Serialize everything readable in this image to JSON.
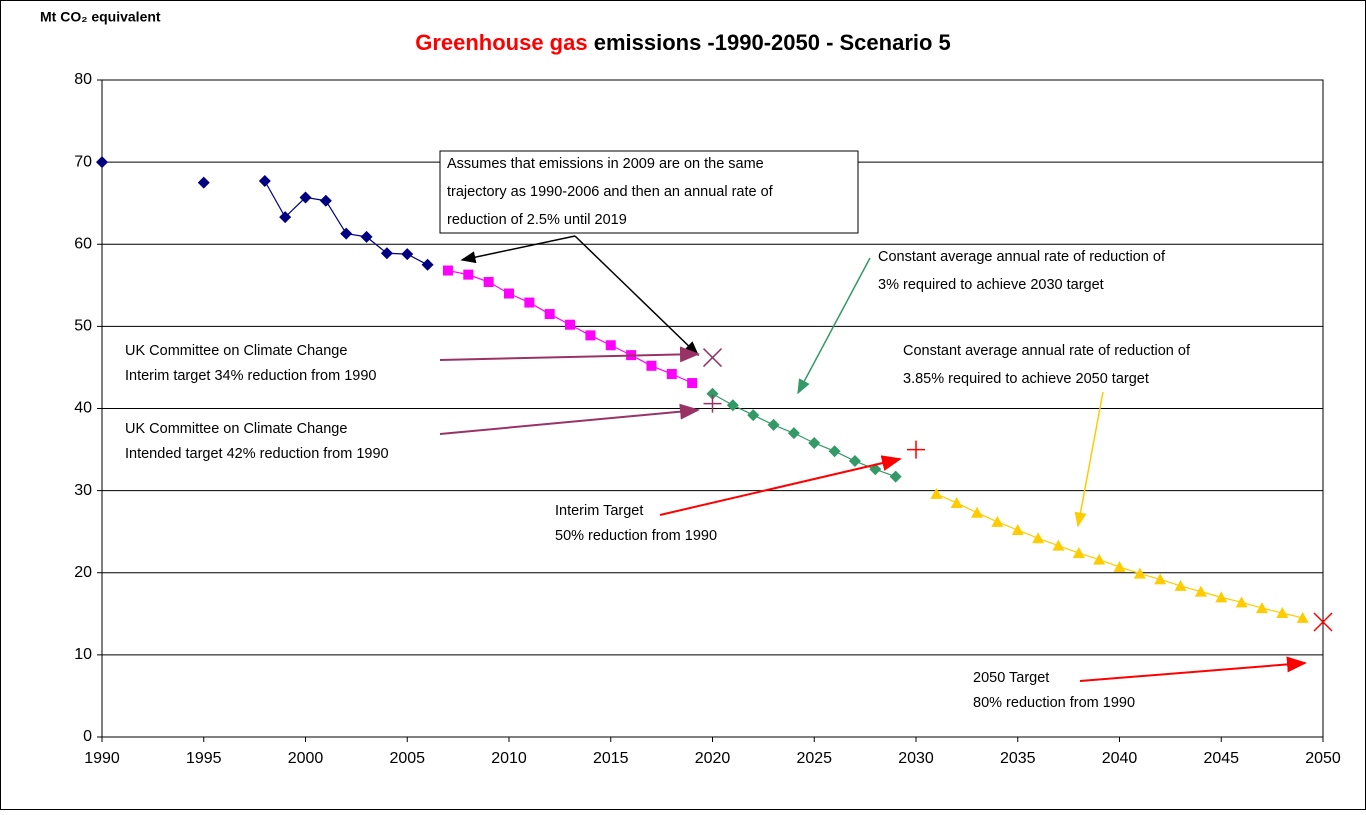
{
  "chart_data": {
    "type": "line",
    "title": {
      "highlight": "Greenhouse gas",
      "rest": " emissions -1990-2050 - Scenario 5"
    },
    "y_label": "Mt CO₂ equivalent",
    "xlim": [
      1990,
      2050
    ],
    "xticks": [
      1990,
      1995,
      2000,
      2005,
      2010,
      2015,
      2020,
      2025,
      2030,
      2035,
      2040,
      2045,
      2050
    ],
    "ylim": [
      0,
      80
    ],
    "yticks": [
      0,
      10,
      20,
      30,
      40,
      50,
      60,
      70,
      80
    ],
    "grid": true,
    "series": [
      {
        "color": "#000080",
        "marker": "diamond",
        "line": true,
        "x": [
          1990,
          1991,
          1992,
          1993,
          1994,
          1995,
          1996,
          1997,
          1998,
          1999,
          2000,
          2001,
          2002,
          2003,
          2004,
          2005,
          2006
        ],
        "values": [
          70,
          null,
          null,
          null,
          null,
          67.5,
          null,
          null,
          67.7,
          63.3,
          65.7,
          65.3,
          61.3,
          60.9,
          58.9,
          58.8,
          57.5
        ]
      },
      {
        "color": "#ff00ff",
        "marker": "square",
        "line": true,
        "x": [
          2007,
          2008,
          2009,
          2010,
          2011,
          2012,
          2013,
          2014,
          2015,
          2016,
          2017,
          2018,
          2019
        ],
        "values": [
          56.8,
          56.3,
          55.4,
          54.0,
          52.9,
          51.5,
          50.2,
          48.9,
          47.7,
          46.5,
          45.2,
          44.2,
          43.1
        ]
      },
      {
        "color": "#339966",
        "marker": "diamond",
        "line": true,
        "x": [
          2020,
          2021,
          2022,
          2023,
          2024,
          2025,
          2026,
          2027,
          2028,
          2029
        ],
        "values": [
          41.8,
          40.4,
          39.2,
          38.0,
          37.0,
          35.8,
          34.8,
          33.6,
          32.6,
          31.7
        ]
      },
      {
        "color": "#ffcc00",
        "marker": "triangle",
        "line": true,
        "x": [
          2031,
          2032,
          2033,
          2034,
          2035,
          2036,
          2037,
          2038,
          2039,
          2040,
          2041,
          2042,
          2043,
          2044,
          2045,
          2046,
          2047,
          2048,
          2049
        ],
        "values": [
          29.6,
          28.5,
          27.3,
          26.2,
          25.2,
          24.2,
          23.3,
          22.4,
          21.6,
          20.7,
          19.9,
          19.2,
          18.4,
          17.7,
          17.0,
          16.4,
          15.7,
          15.1,
          14.5
        ]
      },
      {
        "color": "#993366",
        "marker": "x",
        "line": false,
        "x": [
          2020
        ],
        "values": [
          46.2
        ]
      },
      {
        "color": "#993366",
        "marker": "plus",
        "line": false,
        "x": [
          2020
        ],
        "values": [
          40.6
        ]
      },
      {
        "color": "#ff0000",
        "marker": "plus",
        "line": false,
        "x": [
          2030
        ],
        "values": [
          35
        ]
      },
      {
        "color": "#ff0000",
        "marker": "x",
        "line": false,
        "x": [
          2050
        ],
        "values": [
          14
        ]
      }
    ],
    "annotations": [
      {
        "lines": [
          "Assumes that emissions in 2009 are on the same",
          "trajectory as 1990-2006 and then an annual rate of",
          "reduction of 2.5% until 2019"
        ]
      },
      {
        "lines": [
          "Constant average annual rate of reduction of",
          "3% required to achieve 2030 target"
        ]
      },
      {
        "lines": [
          "UK Committee on Climate Change",
          "Interim target 34% reduction from 1990"
        ]
      },
      {
        "lines": [
          "UK Committee on Climate Change",
          "Intended target 42% reduction from 1990"
        ]
      },
      {
        "lines": [
          "Constant average annual rate of reduction of",
          "3.85% required to achieve 2050 target"
        ]
      },
      {
        "lines": [
          "Interim Target",
          "50% reduction from 1990"
        ]
      },
      {
        "lines": [
          "2050 Target",
          "80% reduction from 1990"
        ]
      }
    ]
  }
}
